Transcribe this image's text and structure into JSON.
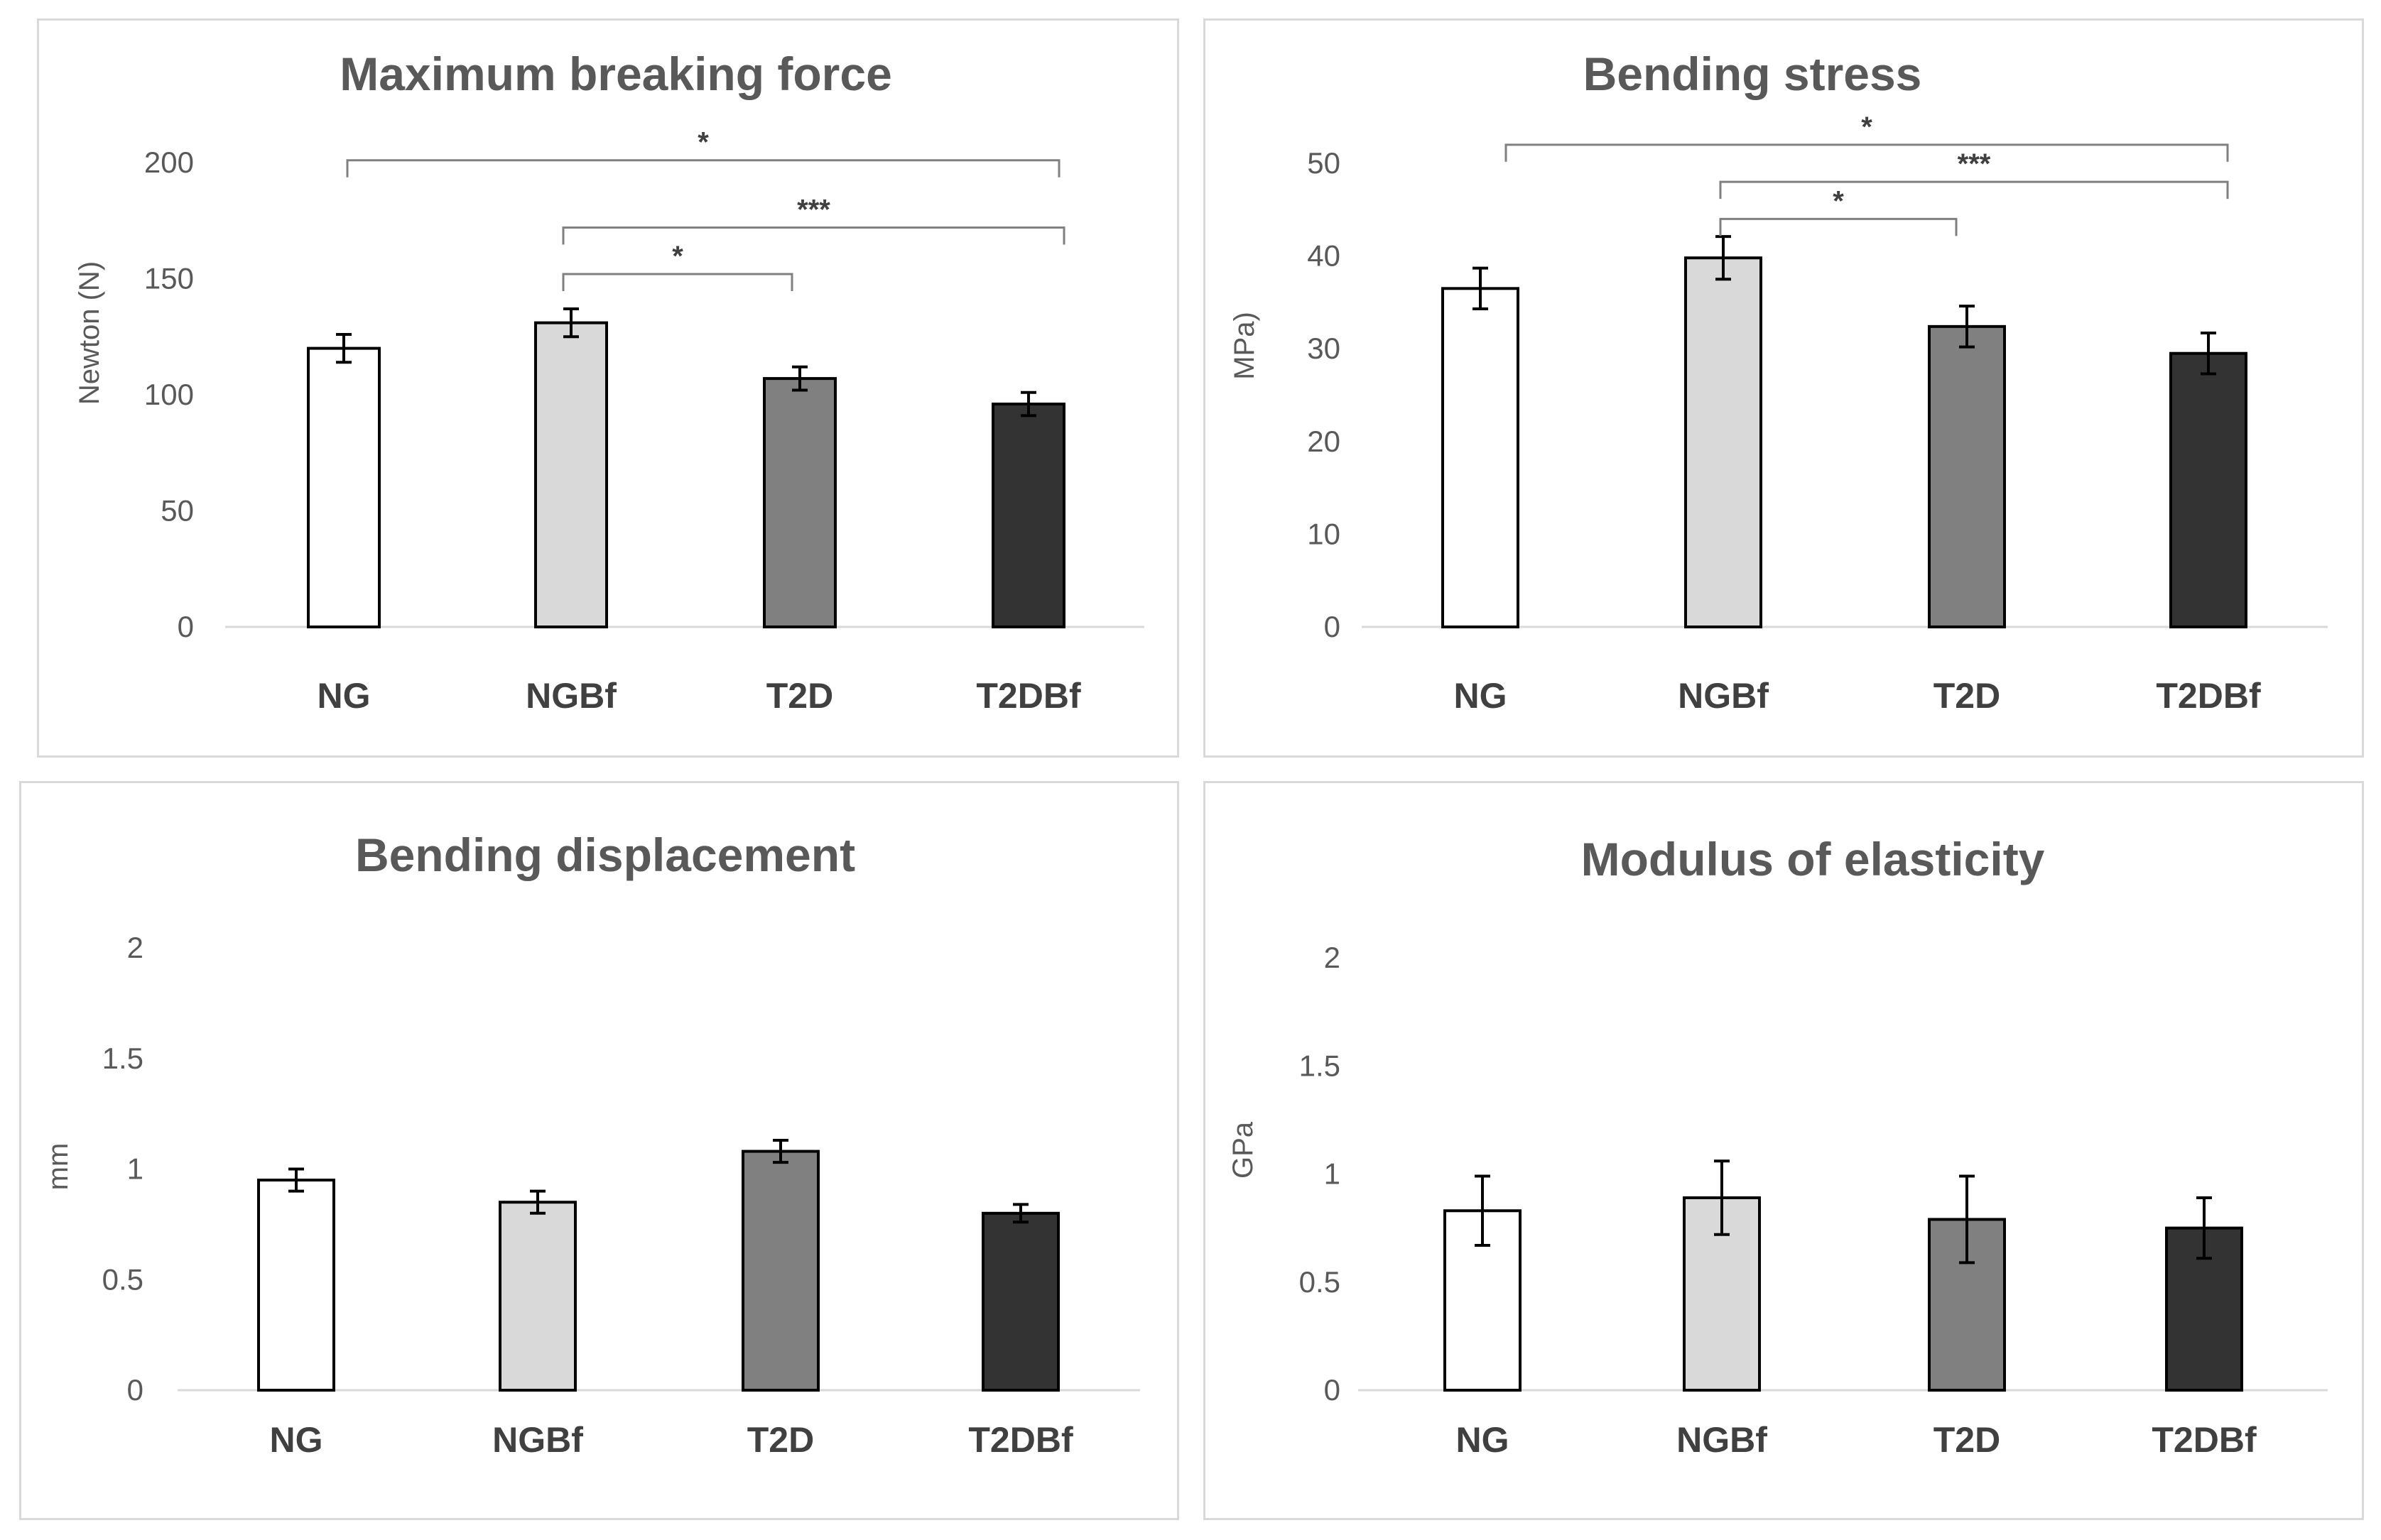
{
  "chart_data": [
    {
      "type": "bar",
      "title": "Maximum breaking force",
      "xlabel": "",
      "ylabel": "Newton (N)",
      "categories": [
        "NG",
        "NGBf",
        "T2D",
        "T2DBf"
      ],
      "values": [
        120,
        131,
        107,
        96
      ],
      "errors": [
        6,
        6,
        5,
        5
      ],
      "bar_colors": [
        "#ffffff",
        "#d9d9d9",
        "#808080",
        "#333333"
      ],
      "ylim": [
        0,
        200
      ],
      "yticks": [
        0,
        50,
        100,
        150,
        200
      ],
      "ytick_labels": [
        "0",
        "50",
        "100",
        "150",
        "200"
      ],
      "significance": [
        {
          "from": 0,
          "to": 3,
          "label": "*",
          "y": 201
        },
        {
          "from": 1,
          "to": 3,
          "label": "***",
          "y": 172
        },
        {
          "from": 1,
          "to": 2,
          "label": "*",
          "y": 152
        }
      ]
    },
    {
      "type": "bar",
      "title": "Bending stress",
      "xlabel": "",
      "ylabel": "MPa)",
      "categories": [
        "NG",
        "NGBf",
        "T2D",
        "T2DBf"
      ],
      "values": [
        36.5,
        39.8,
        32.4,
        29.5
      ],
      "errors": [
        2.2,
        2.3,
        2.2,
        2.2
      ],
      "bar_colors": [
        "#ffffff",
        "#d9d9d9",
        "#808080",
        "#333333"
      ],
      "ylim": [
        0,
        50
      ],
      "yticks": [
        0,
        10,
        20,
        30,
        40,
        50
      ],
      "ytick_labels": [
        "0",
        "10",
        "20",
        "30",
        "40",
        "50"
      ],
      "significance": [
        {
          "from": 0,
          "to": 3,
          "label": "*",
          "y": 52
        },
        {
          "from": 1,
          "to": 3,
          "label": "***",
          "y": 48
        },
        {
          "from": 1,
          "to": 2,
          "label": "*",
          "y": 44
        }
      ]
    },
    {
      "type": "bar",
      "title": "Bending displacement",
      "xlabel": "",
      "ylabel": "mm",
      "categories": [
        "NG",
        "NGBf",
        "T2D",
        "T2DBf"
      ],
      "values": [
        0.95,
        0.85,
        1.08,
        0.8
      ],
      "errors": [
        0.05,
        0.05,
        0.05,
        0.04
      ],
      "bar_colors": [
        "#ffffff",
        "#d9d9d9",
        "#808080",
        "#333333"
      ],
      "ylim": [
        0,
        2
      ],
      "yticks": [
        0,
        0.5,
        1,
        1.5,
        2
      ],
      "ytick_labels": [
        "0",
        "0.5",
        "1",
        "1.5",
        "2"
      ],
      "significance": []
    },
    {
      "type": "bar",
      "title": "Modulus of elasticity",
      "xlabel": "",
      "ylabel": "GPa",
      "categories": [
        "NG",
        "NGBf",
        "T2D",
        "T2DBf"
      ],
      "values": [
        0.83,
        0.89,
        0.79,
        0.75
      ],
      "errors": [
        0.16,
        0.17,
        0.2,
        0.14
      ],
      "bar_colors": [
        "#ffffff",
        "#d9d9d9",
        "#808080",
        "#333333"
      ],
      "ylim": [
        0,
        2
      ],
      "yticks": [
        0,
        0.5,
        1,
        1.5,
        2
      ],
      "ytick_labels": [
        "0",
        "0.5",
        "1",
        "1.5",
        "2"
      ],
      "significance": []
    }
  ]
}
